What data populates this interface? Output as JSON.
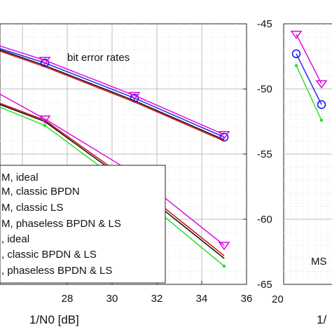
{
  "chart_data": [
    {
      "type": "line",
      "title": "",
      "annotation": "bit error rates",
      "xlabel": "1/N0 [dB]",
      "ylabel": "",
      "xlim": [
        25.0,
        36
      ],
      "ylim": [
        -65,
        -45
      ],
      "xticks": [
        "28",
        "30",
        "32",
        "34",
        "36"
      ],
      "yticks": [
        "-45",
        "-50",
        "-55",
        "-60",
        "-65"
      ],
      "grid": "on",
      "legend_position": "lower-left",
      "series": [
        {
          "name": "M, ideal",
          "color": "#000000",
          "marker": "none",
          "x": [
            25,
            27,
            31,
            35
          ],
          "y": [
            -47.0,
            -48.2,
            -50.9,
            -53.9
          ]
        },
        {
          "name": "M, classic BPDN",
          "color": "#1a1aff",
          "marker": "circle",
          "x": [
            25,
            27,
            31,
            35
          ],
          "y": [
            -46.9,
            -48.0,
            -50.7,
            -53.7
          ]
        },
        {
          "name": "M, classic LS",
          "color": "#d00000",
          "marker": "none",
          "x": [
            25,
            27,
            31,
            35
          ],
          "y": [
            -47.1,
            -48.3,
            -51.0,
            -54.0
          ]
        },
        {
          "name": "M, phaseless BPDN & LS",
          "color": "#e000e0",
          "marker": "triangle-down",
          "x": [
            25,
            27,
            31,
            35
          ],
          "y": [
            -46.7,
            -47.8,
            -50.5,
            -53.5
          ]
        },
        {
          "name": ", ideal",
          "color": "#000000",
          "marker": "none",
          "x": [
            25,
            27,
            31,
            35
          ],
          "y": [
            -51.2,
            -52.5,
            -57.5,
            -63.0
          ]
        },
        {
          "name": ", classic BPDN & LS",
          "color": "#d00000",
          "marker": "none",
          "x": [
            25,
            27,
            31,
            35
          ],
          "y": [
            -51.1,
            -52.4,
            -57.3,
            -62.8
          ]
        },
        {
          "name": ", phaseless BPDN & LS",
          "color": "#22dd22",
          "marker": "dot",
          "x": [
            25,
            27,
            31,
            35
          ],
          "y": [
            -51.4,
            -52.8,
            -57.9,
            -63.6
          ]
        },
        {
          "name": "",
          "color": "#e000e0",
          "marker": "triangle-down",
          "x": [
            25,
            27,
            31,
            35
          ],
          "y": [
            -50.4,
            -52.3,
            -56.5,
            -62.0
          ]
        }
      ]
    },
    {
      "type": "line",
      "annotation": "MS",
      "xlabel": "1/",
      "xticks": [
        "20"
      ],
      "ylim": [
        -65,
        -45
      ],
      "series": [
        {
          "color": "#e000e0",
          "marker": "triangle-down",
          "x": [
            21,
            23
          ],
          "y": [
            -45.8,
            -49.6
          ]
        },
        {
          "color": "#1a1aff",
          "marker": "circle",
          "x": [
            21,
            23
          ],
          "y": [
            -47.3,
            -51.2
          ]
        },
        {
          "color": "#22dd22",
          "marker": "dot",
          "x": [
            21,
            23
          ],
          "y": [
            -48.2,
            -52.4
          ]
        }
      ]
    }
  ]
}
